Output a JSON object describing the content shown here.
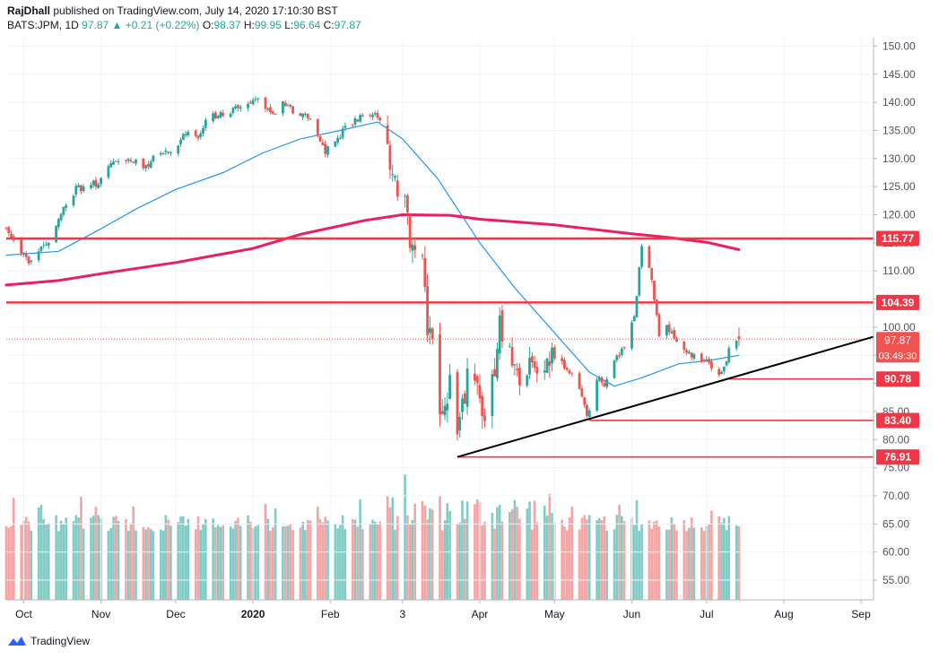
{
  "header": {
    "author": "RajDhall",
    "published_text": "published on TradingView.com, July 14, 2020 17:10:30 BST",
    "symbol": "BATS:JPM, 1D",
    "last": "97.87",
    "change": "+0.21 (+0.22%)",
    "o_label": "O:",
    "o": "98.37",
    "h_label": "H:",
    "h": "99.95",
    "l_label": "L:",
    "l": "96.64",
    "c_label": "C:",
    "c": "97.87"
  },
  "footer": {
    "brand": "TradingView",
    "logo_icon": "tradingview-logo-icon"
  },
  "colors": {
    "up": "#26a69a",
    "down": "#ef5350",
    "ma_fast": "#2196f3",
    "ma_slow": "#e91e63",
    "level": "#f23645",
    "trend": "#000000",
    "vol_up": "#80cbc4",
    "vol_down": "#f5a3a3"
  },
  "chart_data": {
    "type": "candlestick",
    "price_axis": {
      "ylim": [
        51.5,
        151.5
      ],
      "ticks": [
        "150.00",
        "145.00",
        "140.00",
        "135.00",
        "130.00",
        "125.00",
        "120.00",
        "115.00",
        "110.00",
        "105.00",
        "100.00",
        "95.00",
        "90.00",
        "85.00",
        "80.00",
        "75.00",
        "70.00",
        "65.00",
        "60.00",
        "55.00"
      ]
    },
    "time_axis": {
      "start": "2019-09-24",
      "end": "2020-09-06",
      "ticks": [
        {
          "date": "2019-10-01",
          "label": "Oct",
          "bold": false
        },
        {
          "date": "2019-11-01",
          "label": "Nov",
          "bold": false
        },
        {
          "date": "2019-12-01",
          "label": "Dec",
          "bold": false
        },
        {
          "date": "2020-01-01",
          "label": "2020",
          "bold": true
        },
        {
          "date": "2020-02-01",
          "label": "Feb",
          "bold": false
        },
        {
          "date": "2020-03-01",
          "label": "3",
          "bold": false
        },
        {
          "date": "2020-04-01",
          "label": "Apr",
          "bold": false
        },
        {
          "date": "2020-05-01",
          "label": "May",
          "bold": false
        },
        {
          "date": "2020-06-01",
          "label": "Jun",
          "bold": false
        },
        {
          "date": "2020-07-01",
          "label": "Jul",
          "bold": false
        },
        {
          "date": "2020-08-01",
          "label": "Aug",
          "bold": false
        },
        {
          "date": "2020-09-01",
          "label": "Sep",
          "bold": false
        }
      ]
    },
    "close_path": [
      [
        "2019-09-24",
        117.8
      ],
      [
        "2019-10-03",
        111.5
      ],
      [
        "2019-10-10",
        114.5
      ],
      [
        "2019-10-16",
        120.5
      ],
      [
        "2019-10-22",
        124.5
      ],
      [
        "2019-10-30",
        125.5
      ],
      [
        "2019-11-05",
        129.0
      ],
      [
        "2019-11-12",
        130.5
      ],
      [
        "2019-11-18",
        128.5
      ],
      [
        "2019-11-26",
        131.5
      ],
      [
        "2019-12-02",
        132.0
      ],
      [
        "2019-12-05",
        134.5
      ],
      [
        "2019-12-10",
        133.0
      ],
      [
        "2019-12-13",
        137.5
      ],
      [
        "2019-12-20",
        138.0
      ],
      [
        "2019-12-27",
        139.0
      ],
      [
        "2020-01-02",
        141.0
      ],
      [
        "2020-01-06",
        138.5
      ],
      [
        "2020-01-10",
        138.0
      ],
      [
        "2020-01-14",
        140.0
      ],
      [
        "2020-01-17",
        138.5
      ],
      [
        "2020-01-24",
        137.0
      ],
      [
        "2020-01-30",
        131.5
      ],
      [
        "2020-02-04",
        134.0
      ],
      [
        "2020-02-10",
        136.5
      ],
      [
        "2020-02-14",
        138.0
      ],
      [
        "2020-02-19",
        138.5
      ],
      [
        "2020-02-24",
        133.0
      ],
      [
        "2020-02-27",
        125.5
      ],
      [
        "2020-03-02",
        121.5
      ],
      [
        "2020-03-05",
        113.0
      ],
      [
        "2020-03-09",
        114.5
      ],
      [
        "2020-03-11",
        101.0
      ],
      [
        "2020-03-13",
        100.0
      ],
      [
        "2020-03-16",
        87.0
      ],
      [
        "2020-03-18",
        84.5
      ],
      [
        "2020-03-20",
        91.0
      ],
      [
        "2020-03-23",
        78.5
      ],
      [
        "2020-03-25",
        85.0
      ],
      [
        "2020-03-27",
        92.0
      ],
      [
        "2020-03-31",
        90.0
      ],
      [
        "2020-04-03",
        84.5
      ],
      [
        "2020-04-07",
        92.0
      ],
      [
        "2020-04-09",
        100.0
      ],
      [
        "2020-04-14",
        94.0
      ],
      [
        "2020-04-17",
        90.0
      ],
      [
        "2020-04-21",
        92.0
      ],
      [
        "2020-04-24",
        91.5
      ],
      [
        "2020-04-29",
        95.5
      ],
      [
        "2020-05-01",
        94.0
      ],
      [
        "2020-05-06",
        93.0
      ],
      [
        "2020-05-11",
        89.5
      ],
      [
        "2020-05-14",
        84.0
      ],
      [
        "2020-05-18",
        90.5
      ],
      [
        "2020-05-21",
        90.0
      ],
      [
        "2020-05-26",
        94.5
      ],
      [
        "2020-05-29",
        97.0
      ],
      [
        "2020-06-02",
        102.0
      ],
      [
        "2020-06-05",
        114.5
      ],
      [
        "2020-06-08",
        111.0
      ],
      [
        "2020-06-10",
        105.0
      ],
      [
        "2020-06-12",
        98.5
      ],
      [
        "2020-06-15",
        100.0
      ],
      [
        "2020-06-18",
        98.0
      ],
      [
        "2020-06-22",
        96.5
      ],
      [
        "2020-06-25",
        94.5
      ],
      [
        "2020-06-29",
        94.5
      ],
      [
        "2020-07-02",
        93.5
      ],
      [
        "2020-07-07",
        91.5
      ],
      [
        "2020-07-10",
        96.0
      ],
      [
        "2020-07-14",
        97.87
      ]
    ],
    "volume": {
      "ylim": [
        0,
        100
      ],
      "base": 50,
      "calm": 12,
      "crash": 28,
      "wave": 7,
      "crash_start": "2020-02-24",
      "crash_end": "2020-04-30"
    },
    "series": [
      {
        "name": "",
        "type": "sma",
        "color": "#2196f3",
        "points": [
          [
            "2019-09-24",
            112.8
          ],
          [
            "2019-10-15",
            113.5
          ],
          [
            "2019-11-01",
            117.5
          ],
          [
            "2019-11-15",
            121.0
          ],
          [
            "2019-12-01",
            124.5
          ],
          [
            "2019-12-20",
            127.5
          ],
          [
            "2020-01-05",
            131.0
          ],
          [
            "2020-01-20",
            133.5
          ],
          [
            "2020-02-05",
            135.0
          ],
          [
            "2020-02-20",
            136.5
          ],
          [
            "2020-03-01",
            133.5
          ],
          [
            "2020-03-15",
            126.5
          ],
          [
            "2020-04-01",
            115.0
          ],
          [
            "2020-04-15",
            107.0
          ],
          [
            "2020-05-01",
            99.0
          ],
          [
            "2020-05-15",
            92.0
          ],
          [
            "2020-05-25",
            89.5
          ],
          [
            "2020-06-05",
            91.0
          ],
          [
            "2020-06-20",
            93.5
          ],
          [
            "2020-07-01",
            94.0
          ],
          [
            "2020-07-14",
            95.0
          ]
        ]
      },
      {
        "name": "",
        "type": "sma",
        "color": "#e91e63",
        "points": [
          [
            "2019-09-24",
            107.5
          ],
          [
            "2019-10-15",
            108.3
          ],
          [
            "2019-11-01",
            109.5
          ],
          [
            "2019-12-01",
            111.5
          ],
          [
            "2020-01-01",
            114.0
          ],
          [
            "2020-01-20",
            116.5
          ],
          [
            "2020-02-15",
            119.0
          ],
          [
            "2020-03-01",
            120.0
          ],
          [
            "2020-03-20",
            119.9
          ],
          [
            "2020-04-01",
            119.2
          ],
          [
            "2020-05-01",
            118.2
          ],
          [
            "2020-06-01",
            116.6
          ],
          [
            "2020-06-15",
            116.0
          ],
          [
            "2020-07-01",
            115.1
          ],
          [
            "2020-07-14",
            113.8
          ]
        ]
      }
    ],
    "levels": [
      {
        "value": 115.77,
        "label": "115.77",
        "style": "thick",
        "from": "2019-09-24"
      },
      {
        "value": 104.39,
        "label": "104.39",
        "style": "thick",
        "from": "2019-09-24"
      },
      {
        "value": 90.78,
        "label": "90.78",
        "style": "thin",
        "from": "2020-07-10"
      },
      {
        "value": 83.4,
        "label": "83.40",
        "style": "thin",
        "from": "2020-05-15"
      },
      {
        "value": 76.91,
        "label": "76.91",
        "style": "thin",
        "from": "2020-03-23"
      }
    ],
    "trendline": {
      "from": [
        "2020-03-23",
        76.91
      ],
      "to": [
        "2020-09-06",
        98.3
      ]
    },
    "last_price": {
      "value": 97.87,
      "label": "97.87",
      "countdown": "03:49:30"
    }
  }
}
